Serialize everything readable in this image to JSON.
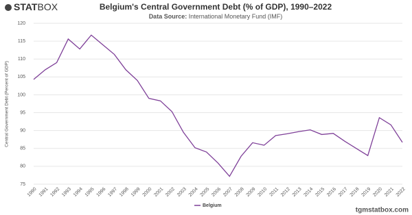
{
  "logo": {
    "part1": "STAT",
    "part2": "BOX"
  },
  "brand": "tgmstatbox.com",
  "chart_data": {
    "type": "line",
    "title": "Belgium's Central Government Debt (% of GDP), 1990–2022",
    "source_label": "Data Source:",
    "source": "International Monetary Fund (IMF)",
    "y_label": "Central Government Debt (Percent of GDP)",
    "categories": [
      "1990",
      "1991",
      "1992",
      "1993",
      "1994",
      "1995",
      "1996",
      "1997",
      "1998",
      "1999",
      "2000",
      "2001",
      "2002",
      "2003",
      "2004",
      "2005",
      "2006",
      "2007",
      "2008",
      "2009",
      "2010",
      "2011",
      "2012",
      "2013",
      "2014",
      "2015",
      "2016",
      "2017",
      "2018",
      "2019",
      "2020",
      "2021",
      "2022"
    ],
    "series": [
      {
        "name": "Belgium",
        "color": "#7e3f98",
        "values": [
          104.3,
          107,
          109,
          115.6,
          112.8,
          116.7,
          114,
          111.3,
          107,
          104,
          99,
          98.3,
          95.3,
          89.5,
          85.2,
          84,
          80.9,
          77.2,
          82.8,
          86.6,
          85.9,
          88.6,
          89.1,
          89.7,
          90.2,
          88.9,
          89.2,
          87,
          85,
          83,
          93.6,
          91.6,
          86.7
        ]
      }
    ],
    "ylim": [
      75,
      120
    ],
    "yticks": [
      75,
      80,
      85,
      90,
      95,
      100,
      105,
      110,
      115,
      120
    ],
    "grid": true,
    "legend": "bottom"
  }
}
